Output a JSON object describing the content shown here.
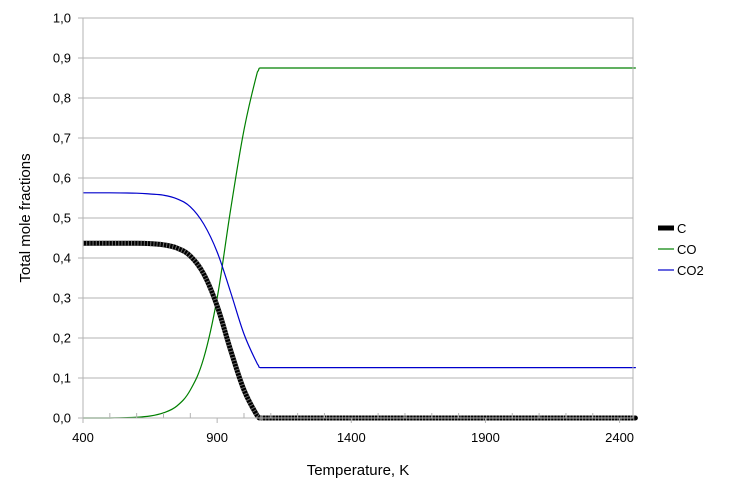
{
  "chart_data": {
    "type": "line",
    "title": "",
    "xlabel": "Temperature, K",
    "ylabel": "Total mole fractions",
    "xlim": [
      400,
      2450
    ],
    "ylim": [
      0,
      1
    ],
    "x_ticks": [
      400,
      900,
      1400,
      1900,
      2400
    ],
    "x_tick_labels": [
      "400",
      "900",
      "1400",
      "1900",
      "2400"
    ],
    "y_ticks": [
      0,
      0.1,
      0.2,
      0.3,
      0.4,
      0.5,
      0.6,
      0.7,
      0.8,
      0.9,
      1.0
    ],
    "y_tick_labels": [
      "0,0",
      "0,1",
      "0,2",
      "0,3",
      "0,4",
      "0,5",
      "0,6",
      "0,7",
      "0,8",
      "0,9",
      "1,0"
    ],
    "grid": "horizontal",
    "legend_position": "right",
    "x": [
      400,
      500,
      600,
      650,
      700,
      750,
      800,
      850,
      900,
      950,
      1000,
      1050,
      1060,
      1100,
      1400,
      1900,
      2400,
      2450
    ],
    "series": [
      {
        "name": "C",
        "color": "#000000",
        "values": [
          0.437,
          0.437,
          0.437,
          0.436,
          0.433,
          0.425,
          0.405,
          0.36,
          0.28,
          0.17,
          0.07,
          0.005,
          0.0,
          0.0,
          0.0,
          0.0,
          0.0,
          0.0
        ]
      },
      {
        "name": "CO",
        "color": "#008000",
        "values": [
          0.0,
          0.0,
          0.002,
          0.005,
          0.013,
          0.03,
          0.07,
          0.15,
          0.3,
          0.52,
          0.72,
          0.865,
          0.875,
          0.875,
          0.875,
          0.875,
          0.875,
          0.875
        ]
      },
      {
        "name": "CO2",
        "color": "#0000cc",
        "values": [
          0.563,
          0.563,
          0.562,
          0.56,
          0.557,
          0.548,
          0.528,
          0.485,
          0.415,
          0.315,
          0.21,
          0.135,
          0.126,
          0.126,
          0.126,
          0.126,
          0.126,
          0.126
        ]
      }
    ]
  }
}
